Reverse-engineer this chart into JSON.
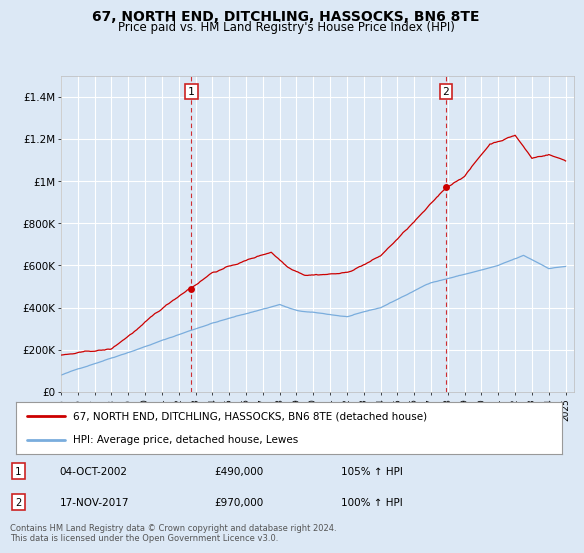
{
  "title": "67, NORTH END, DITCHLING, HASSOCKS, BN6 8TE",
  "subtitle": "Price paid vs. HM Land Registry's House Price Index (HPI)",
  "title_fontsize": 10,
  "subtitle_fontsize": 8.5,
  "background_color": "#dce8f5",
  "plot_bg_color": "#dce8f5",
  "grid_color": "#ffffff",
  "ylabel_ticks": [
    "£0",
    "£200K",
    "£400K",
    "£600K",
    "£800K",
    "£1M",
    "£1.2M",
    "£1.4M"
  ],
  "ytick_values": [
    0,
    200000,
    400000,
    600000,
    800000,
    1000000,
    1200000,
    1400000
  ],
  "ylim": [
    0,
    1500000
  ],
  "xlim_start": 1995.0,
  "xlim_end": 2025.5,
  "xtick_years": [
    1995,
    1996,
    1997,
    1998,
    1999,
    2000,
    2001,
    2002,
    2003,
    2004,
    2005,
    2006,
    2007,
    2008,
    2009,
    2010,
    2011,
    2012,
    2013,
    2014,
    2015,
    2016,
    2017,
    2018,
    2019,
    2020,
    2021,
    2022,
    2023,
    2024,
    2025
  ],
  "sale1_x": 2002.75,
  "sale1_y": 490000,
  "sale1_label": "1",
  "sale2_x": 2017.88,
  "sale2_y": 970000,
  "sale2_label": "2",
  "red_line_color": "#cc0000",
  "blue_line_color": "#7aaddd",
  "legend_label_red": "67, NORTH END, DITCHLING, HASSOCKS, BN6 8TE (detached house)",
  "legend_label_blue": "HPI: Average price, detached house, Lewes",
  "annotation1_date": "04-OCT-2002",
  "annotation1_price": "£490,000",
  "annotation1_hpi": "105% ↑ HPI",
  "annotation2_date": "17-NOV-2017",
  "annotation2_price": "£970,000",
  "annotation2_hpi": "100% ↑ HPI",
  "footer": "Contains HM Land Registry data © Crown copyright and database right 2024.\nThis data is licensed under the Open Government Licence v3.0."
}
